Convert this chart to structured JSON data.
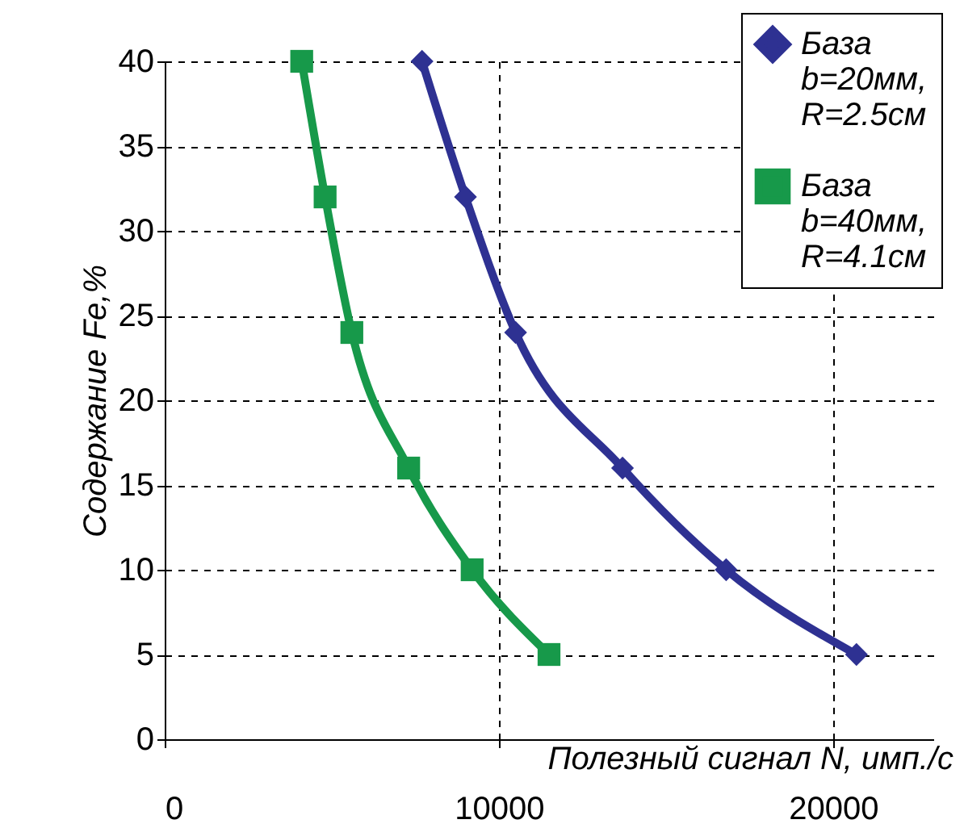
{
  "chart_data": {
    "type": "line",
    "xlabel": "Полезный сигнал N, имп./с",
    "ylabel": "Содержание Fe,%",
    "xlim": [
      0,
      23000
    ],
    "xticks": [
      0,
      10000,
      20000
    ],
    "ylim": [
      0,
      40
    ],
    "yticks": [
      0,
      5,
      10,
      15,
      20,
      25,
      30,
      35,
      40
    ],
    "grid": true,
    "legend": "top right",
    "line_style": "solid",
    "series": [
      {
        "name": "База b=20мм, R=2.5см",
        "color": "#2e3192",
        "marker": "diamond",
        "x": [
          7700,
          9000,
          10500,
          13700,
          16800,
          20700
        ],
        "values": [
          40,
          32,
          24,
          16,
          10,
          5
        ]
      },
      {
        "name": "База b=40мм, R=4.1см",
        "color": "#17994a",
        "marker": "square",
        "x": [
          4100,
          4800,
          5600,
          7300,
          9200,
          11500
        ],
        "values": [
          40,
          32,
          24,
          16,
          10,
          5
        ]
      }
    ]
  }
}
